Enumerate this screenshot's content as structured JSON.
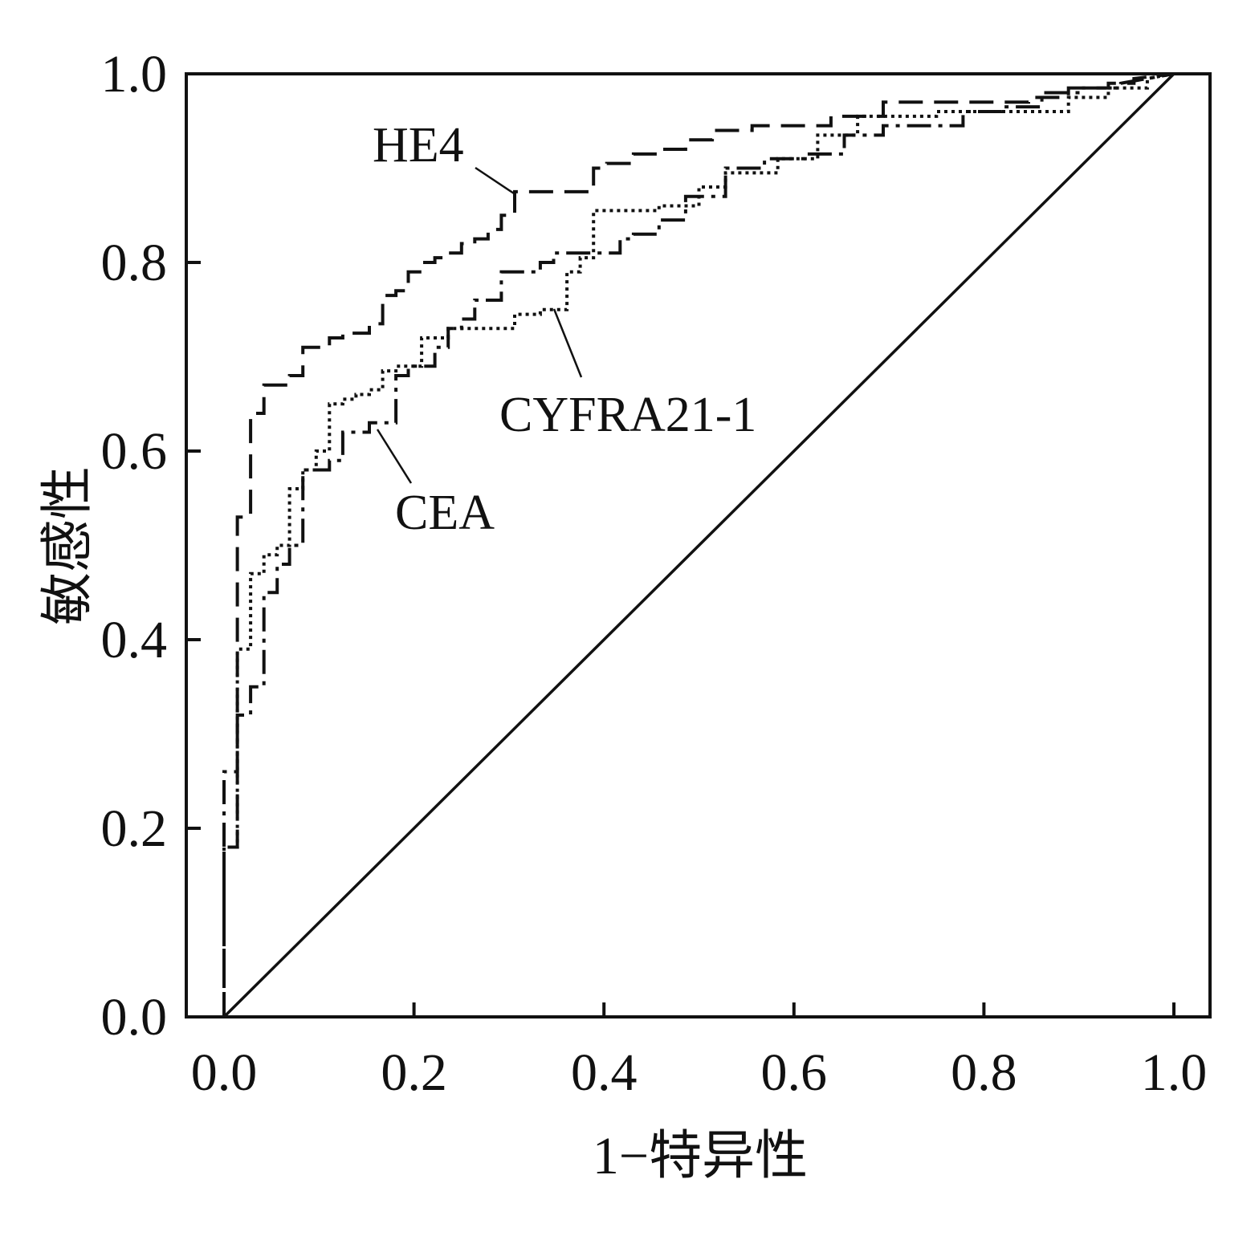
{
  "chart_data": {
    "type": "line",
    "title": "",
    "xlabel": "1−特异性",
    "ylabel": "敏感性",
    "xlim": [
      0,
      1
    ],
    "ylim": [
      0,
      1
    ],
    "xticks": [
      "0.0",
      "0.2",
      "0.4",
      "0.6",
      "0.8",
      "1.0"
    ],
    "yticks": [
      "0.0",
      "0.2",
      "0.4",
      "0.6",
      "0.8",
      "1.0"
    ],
    "grid": false,
    "legend": "none",
    "series": [
      {
        "name": "HE4",
        "style": "dashed",
        "x": [
          0.0,
          0.0,
          0.014,
          0.014,
          0.028,
          0.028,
          0.042,
          0.042,
          0.069,
          0.069,
          0.083,
          0.083,
          0.111,
          0.111,
          0.125,
          0.125,
          0.153,
          0.153,
          0.167,
          0.167,
          0.181,
          0.181,
          0.194,
          0.194,
          0.208,
          0.208,
          0.222,
          0.222,
          0.236,
          0.236,
          0.25,
          0.25,
          0.264,
          0.264,
          0.278,
          0.278,
          0.292,
          0.292,
          0.306,
          0.306,
          0.319,
          0.319,
          0.333,
          0.333,
          0.361,
          0.361,
          0.389,
          0.389,
          0.403,
          0.403,
          0.431,
          0.431,
          0.458,
          0.458,
          0.486,
          0.486,
          0.514,
          0.514,
          0.556,
          0.556,
          0.639,
          0.639,
          0.694,
          0.694,
          0.75,
          0.75,
          0.778,
          0.778,
          0.847,
          0.847,
          0.889,
          0.889,
          0.931,
          0.931,
          0.958,
          0.958,
          1.0
        ],
        "y": [
          0.0,
          0.18,
          0.18,
          0.53,
          0.53,
          0.64,
          0.64,
          0.67,
          0.67,
          0.68,
          0.68,
          0.71,
          0.71,
          0.72,
          0.72,
          0.725,
          0.725,
          0.735,
          0.735,
          0.765,
          0.765,
          0.77,
          0.77,
          0.79,
          0.79,
          0.8,
          0.8,
          0.805,
          0.805,
          0.81,
          0.81,
          0.82,
          0.82,
          0.825,
          0.825,
          0.835,
          0.835,
          0.85,
          0.85,
          0.875,
          0.875,
          0.875,
          0.875,
          0.875,
          0.875,
          0.875,
          0.875,
          0.9,
          0.9,
          0.905,
          0.905,
          0.915,
          0.915,
          0.92,
          0.92,
          0.93,
          0.93,
          0.94,
          0.94,
          0.945,
          0.945,
          0.955,
          0.955,
          0.97,
          0.97,
          0.97,
          0.97,
          0.97,
          0.97,
          0.975,
          0.975,
          0.985,
          0.985,
          0.99,
          0.99,
          0.995,
          1.0
        ]
      },
      {
        "name": "CEA",
        "style": "dash-dot",
        "x": [
          0.0,
          0.0,
          0.014,
          0.014,
          0.028,
          0.028,
          0.042,
          0.042,
          0.056,
          0.056,
          0.069,
          0.069,
          0.083,
          0.083,
          0.097,
          0.097,
          0.111,
          0.111,
          0.125,
          0.125,
          0.153,
          0.153,
          0.181,
          0.181,
          0.194,
          0.194,
          0.222,
          0.222,
          0.236,
          0.236,
          0.25,
          0.25,
          0.264,
          0.264,
          0.278,
          0.278,
          0.292,
          0.292,
          0.319,
          0.319,
          0.333,
          0.333,
          0.347,
          0.347,
          0.361,
          0.361,
          0.389,
          0.389,
          0.417,
          0.417,
          0.431,
          0.431,
          0.458,
          0.458,
          0.486,
          0.486,
          0.528,
          0.528,
          0.569,
          0.569,
          0.611,
          0.611,
          0.653,
          0.653,
          0.694,
          0.694,
          0.722,
          0.722,
          0.778,
          0.778,
          0.819,
          0.819,
          0.861,
          0.861,
          0.903,
          0.903,
          0.944,
          0.944,
          1.0
        ],
        "y": [
          0.0,
          0.26,
          0.26,
          0.32,
          0.32,
          0.35,
          0.35,
          0.45,
          0.45,
          0.48,
          0.48,
          0.5,
          0.5,
          0.58,
          0.58,
          0.58,
          0.58,
          0.59,
          0.59,
          0.62,
          0.62,
          0.63,
          0.63,
          0.68,
          0.68,
          0.69,
          0.69,
          0.71,
          0.71,
          0.73,
          0.73,
          0.74,
          0.74,
          0.76,
          0.76,
          0.76,
          0.76,
          0.79,
          0.79,
          0.79,
          0.79,
          0.8,
          0.8,
          0.81,
          0.81,
          0.81,
          0.81,
          0.81,
          0.81,
          0.825,
          0.825,
          0.83,
          0.83,
          0.845,
          0.845,
          0.87,
          0.87,
          0.9,
          0.9,
          0.91,
          0.91,
          0.915,
          0.915,
          0.935,
          0.935,
          0.945,
          0.945,
          0.945,
          0.945,
          0.96,
          0.96,
          0.965,
          0.965,
          0.98,
          0.98,
          0.985,
          0.985,
          0.99,
          1.0
        ]
      },
      {
        "name": "CYFRA21-1",
        "style": "dotted",
        "x": [
          0.0,
          0.0,
          0.014,
          0.014,
          0.028,
          0.028,
          0.042,
          0.042,
          0.056,
          0.056,
          0.069,
          0.069,
          0.083,
          0.083,
          0.097,
          0.097,
          0.111,
          0.111,
          0.125,
          0.125,
          0.139,
          0.139,
          0.153,
          0.153,
          0.167,
          0.167,
          0.181,
          0.181,
          0.208,
          0.208,
          0.236,
          0.236,
          0.264,
          0.264,
          0.306,
          0.306,
          0.333,
          0.333,
          0.361,
          0.361,
          0.375,
          0.375,
          0.389,
          0.389,
          0.431,
          0.431,
          0.458,
          0.458,
          0.5,
          0.5,
          0.528,
          0.528,
          0.583,
          0.583,
          0.625,
          0.625,
          0.667,
          0.667,
          0.708,
          0.708,
          0.75,
          0.75,
          0.792,
          0.792,
          0.833,
          0.833,
          0.889,
          0.889,
          0.931,
          0.931,
          0.972,
          0.972,
          1.0
        ],
        "y": [
          0.0,
          0.18,
          0.18,
          0.39,
          0.39,
          0.47,
          0.47,
          0.49,
          0.49,
          0.5,
          0.5,
          0.56,
          0.56,
          0.58,
          0.58,
          0.6,
          0.6,
          0.65,
          0.65,
          0.655,
          0.655,
          0.66,
          0.66,
          0.665,
          0.665,
          0.685,
          0.685,
          0.69,
          0.69,
          0.72,
          0.72,
          0.73,
          0.73,
          0.73,
          0.73,
          0.745,
          0.745,
          0.75,
          0.75,
          0.79,
          0.79,
          0.805,
          0.805,
          0.855,
          0.855,
          0.855,
          0.855,
          0.86,
          0.86,
          0.88,
          0.88,
          0.895,
          0.895,
          0.91,
          0.91,
          0.935,
          0.935,
          0.955,
          0.955,
          0.955,
          0.955,
          0.96,
          0.96,
          0.96,
          0.96,
          0.96,
          0.96,
          0.975,
          0.975,
          0.985,
          0.985,
          0.995,
          1.0
        ]
      },
      {
        "name": "",
        "style": "solid",
        "x": [
          0,
          1
        ],
        "y": [
          0,
          1
        ]
      }
    ],
    "annotations": [
      {
        "text": "HE4",
        "series": "HE4"
      },
      {
        "text": "CYFRA21-1",
        "series": "CYFRA21-1"
      },
      {
        "text": "CEA",
        "series": "CEA"
      }
    ]
  }
}
